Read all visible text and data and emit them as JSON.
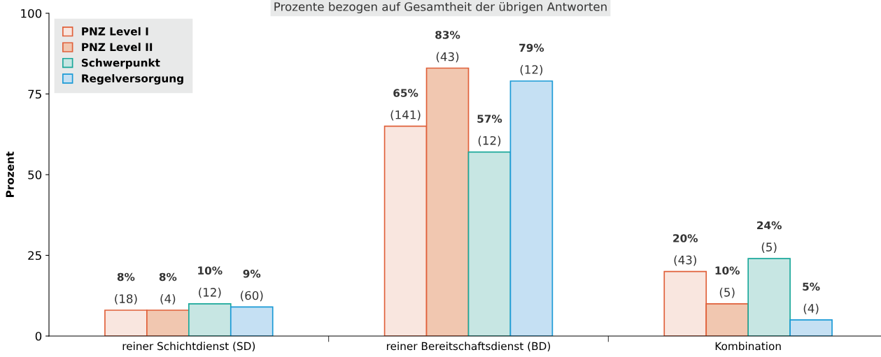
{
  "chart_data": {
    "type": "bar",
    "title": "Prozente bezogen auf Gesamtheit der übrigen Antworten",
    "ylabel": "Prozent",
    "categories": [
      "reiner Schichtdienst (SD)",
      "reiner Bereitschaftsdienst (BD)",
      "Kombination"
    ],
    "series": [
      {
        "name": "PNZ Level I",
        "color": "#f9e6df",
        "values": [
          8,
          65,
          20
        ],
        "value_labels": [
          "8%\n(18)",
          "65%\n(141)",
          "20%\n(43)"
        ]
      },
      {
        "name": "PNZ Level II",
        "color": "#f1c7b0",
        "values": [
          8,
          83,
          10
        ],
        "value_labels": [
          "8%\n(4)",
          "83%\n(43)",
          "10%\n(5)"
        ]
      },
      {
        "name": "Schwerpunkt",
        "color": "#c7e6e3",
        "values": [
          10,
          57,
          24
        ],
        "value_labels": [
          "10%\n(12)",
          "57%\n(12)",
          "24%\n(5)"
        ]
      },
      {
        "name": "Regelversorgung",
        "color": "#c5e0f3",
        "values": [
          9,
          79,
          5
        ],
        "value_labels": [
          "9%\n(60)",
          "79%\n(12)",
          "5%\n(4)"
        ]
      }
    ],
    "ylim": [
      0,
      100
    ],
    "yticks": [
      0,
      25,
      50,
      75,
      100
    ],
    "grid": false,
    "legend": "top left"
  }
}
